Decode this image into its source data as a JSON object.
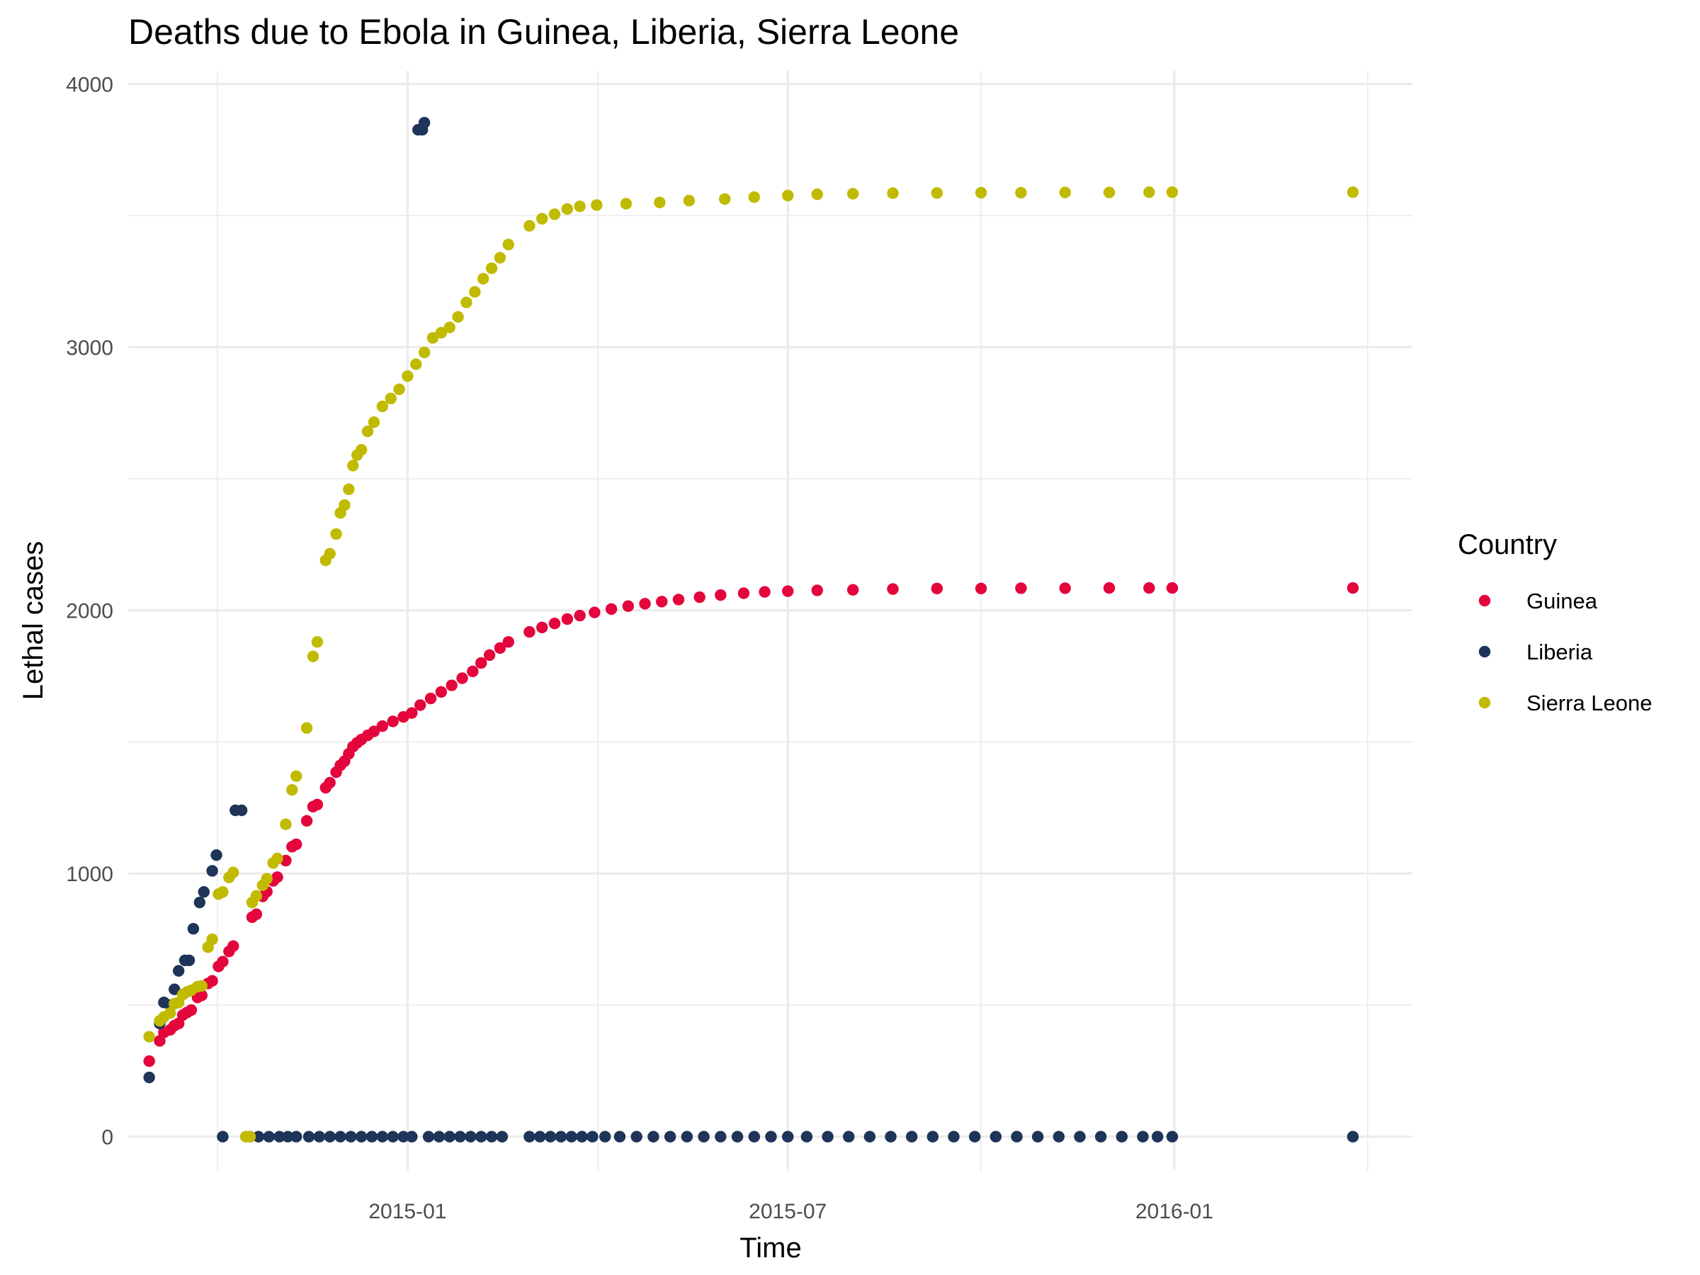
{
  "chart_data": {
    "type": "scatter",
    "title": "Deaths due to Ebola in Guinea, Liberia, Sierra Leone",
    "xlabel": "Time",
    "ylabel": "Lethal cases",
    "x_axis": {
      "type": "date",
      "range": [
        "2014-08-21",
        "2016-04-23"
      ],
      "ticks": [
        "2015-01",
        "2015-07",
        "2016-01"
      ]
    },
    "y_axis": {
      "range": [
        -130,
        4050
      ],
      "ticks": [
        0,
        1000,
        2000,
        3000,
        4000
      ]
    },
    "grid": true,
    "legend": {
      "title": "Country",
      "position": "right"
    },
    "series": [
      {
        "name": "Guinea",
        "color": "#e4053c",
        "points": [
          [
            "2014-08-31",
            287
          ],
          [
            "2014-09-05",
            364
          ],
          [
            "2014-09-07",
            396
          ],
          [
            "2014-09-10",
            406
          ],
          [
            "2014-09-12",
            422
          ],
          [
            "2014-09-14",
            430
          ],
          [
            "2014-09-16",
            462
          ],
          [
            "2014-09-18",
            472
          ],
          [
            "2014-09-20",
            481
          ],
          [
            "2014-09-23",
            529
          ],
          [
            "2014-09-25",
            537
          ],
          [
            "2014-09-28",
            582
          ],
          [
            "2014-09-30",
            592
          ],
          [
            "2014-10-03",
            647
          ],
          [
            "2014-10-05",
            665
          ],
          [
            "2014-10-08",
            704
          ],
          [
            "2014-10-10",
            724
          ],
          [
            "2014-10-19",
            834
          ],
          [
            "2014-10-21",
            845
          ],
          [
            "2014-10-24",
            913
          ],
          [
            "2014-10-26",
            931
          ],
          [
            "2014-10-29",
            972
          ],
          [
            "2014-10-31",
            986
          ],
          [
            "2014-11-04",
            1049
          ],
          [
            "2014-11-07",
            1102
          ],
          [
            "2014-11-09",
            1111
          ],
          [
            "2014-11-14",
            1200
          ],
          [
            "2014-11-17",
            1254
          ],
          [
            "2014-11-19",
            1262
          ],
          [
            "2014-11-23",
            1326
          ],
          [
            "2014-11-25",
            1345
          ],
          [
            "2014-11-28",
            1385
          ],
          [
            "2014-11-30",
            1411
          ],
          [
            "2014-12-02",
            1427
          ],
          [
            "2014-12-04",
            1455
          ],
          [
            "2014-12-06",
            1482
          ],
          [
            "2014-12-08",
            1497
          ],
          [
            "2014-12-10",
            1509
          ],
          [
            "2014-12-13",
            1525
          ],
          [
            "2014-12-16",
            1540
          ],
          [
            "2014-12-20",
            1560
          ],
          [
            "2014-12-25",
            1578
          ],
          [
            "2014-12-30",
            1595
          ],
          [
            "2015-01-03",
            1610
          ],
          [
            "2015-01-07",
            1640
          ],
          [
            "2015-01-12",
            1665
          ],
          [
            "2015-01-17",
            1690
          ],
          [
            "2015-01-22",
            1715
          ],
          [
            "2015-01-27",
            1742
          ],
          [
            "2015-02-01",
            1768
          ],
          [
            "2015-02-05",
            1800
          ],
          [
            "2015-02-09",
            1830
          ],
          [
            "2015-02-14",
            1857
          ],
          [
            "2015-02-18",
            1880
          ],
          [
            "2015-02-28",
            1918
          ],
          [
            "2015-03-06",
            1935
          ],
          [
            "2015-03-12",
            1950
          ],
          [
            "2015-03-18",
            1967
          ],
          [
            "2015-03-24",
            1980
          ],
          [
            "2015-03-31",
            1992
          ],
          [
            "2015-04-08",
            2005
          ],
          [
            "2015-04-16",
            2016
          ],
          [
            "2015-04-24",
            2025
          ],
          [
            "2015-05-02",
            2033
          ],
          [
            "2015-05-10",
            2041
          ],
          [
            "2015-05-20",
            2050
          ],
          [
            "2015-05-30",
            2058
          ],
          [
            "2015-06-10",
            2065
          ],
          [
            "2015-06-20",
            2070
          ],
          [
            "2015-07-01",
            2073
          ],
          [
            "2015-07-15",
            2076
          ],
          [
            "2015-08-01",
            2078
          ],
          [
            "2015-08-20",
            2081
          ],
          [
            "2015-09-10",
            2083
          ],
          [
            "2015-10-01",
            2083
          ],
          [
            "2015-10-20",
            2084
          ],
          [
            "2015-11-10",
            2084
          ],
          [
            "2015-12-01",
            2085
          ],
          [
            "2015-12-20",
            2085
          ],
          [
            "2015-12-31",
            2085
          ],
          [
            "2016-03-26",
            2085
          ]
        ]
      },
      {
        "name": "Liberia",
        "color": "#1e3458",
        "points": [
          [
            "2014-08-31",
            225
          ],
          [
            "2014-09-05",
            430
          ],
          [
            "2014-09-07",
            510
          ],
          [
            "2014-09-10",
            500
          ],
          [
            "2014-09-12",
            560
          ],
          [
            "2014-09-14",
            630
          ],
          [
            "2014-09-17",
            670
          ],
          [
            "2014-09-19",
            670
          ],
          [
            "2014-09-21",
            790
          ],
          [
            "2014-09-24",
            890
          ],
          [
            "2014-09-26",
            930
          ],
          [
            "2014-09-30",
            1010
          ],
          [
            "2014-10-02",
            1070
          ],
          [
            "2014-10-05",
            0
          ],
          [
            "2014-10-11",
            1240
          ],
          [
            "2014-10-14",
            1240
          ],
          [
            "2014-10-18",
            0
          ],
          [
            "2014-10-22",
            0
          ],
          [
            "2014-10-27",
            0
          ],
          [
            "2014-11-01",
            0
          ],
          [
            "2014-11-05",
            0
          ],
          [
            "2014-11-09",
            0
          ],
          [
            "2014-11-15",
            0
          ],
          [
            "2014-11-20",
            0
          ],
          [
            "2014-11-25",
            0
          ],
          [
            "2014-11-30",
            0
          ],
          [
            "2014-12-05",
            0
          ],
          [
            "2014-12-10",
            0
          ],
          [
            "2014-12-15",
            0
          ],
          [
            "2014-12-20",
            0
          ],
          [
            "2014-12-25",
            0
          ],
          [
            "2014-12-30",
            0
          ],
          [
            "2015-01-03",
            0
          ],
          [
            "2015-01-06",
            3826
          ],
          [
            "2015-01-08",
            3826
          ],
          [
            "2015-01-09",
            3853
          ],
          [
            "2015-01-11",
            0
          ],
          [
            "2015-01-16",
            0
          ],
          [
            "2015-01-21",
            0
          ],
          [
            "2015-01-26",
            0
          ],
          [
            "2015-01-31",
            0
          ],
          [
            "2015-02-05",
            0
          ],
          [
            "2015-02-10",
            0
          ],
          [
            "2015-02-15",
            0
          ],
          [
            "2015-02-28",
            0
          ],
          [
            "2015-03-05",
            0
          ],
          [
            "2015-03-10",
            0
          ],
          [
            "2015-03-15",
            0
          ],
          [
            "2015-03-20",
            0
          ],
          [
            "2015-03-25",
            0
          ],
          [
            "2015-03-30",
            0
          ],
          [
            "2015-04-05",
            0
          ],
          [
            "2015-04-12",
            0
          ],
          [
            "2015-04-20",
            0
          ],
          [
            "2015-04-28",
            0
          ],
          [
            "2015-05-06",
            0
          ],
          [
            "2015-05-14",
            0
          ],
          [
            "2015-05-22",
            0
          ],
          [
            "2015-05-30",
            0
          ],
          [
            "2015-06-07",
            0
          ],
          [
            "2015-06-15",
            0
          ],
          [
            "2015-06-23",
            0
          ],
          [
            "2015-07-01",
            0
          ],
          [
            "2015-07-10",
            0
          ],
          [
            "2015-07-20",
            0
          ],
          [
            "2015-07-30",
            0
          ],
          [
            "2015-08-09",
            0
          ],
          [
            "2015-08-19",
            0
          ],
          [
            "2015-08-29",
            0
          ],
          [
            "2015-09-08",
            0
          ],
          [
            "2015-09-18",
            0
          ],
          [
            "2015-09-28",
            0
          ],
          [
            "2015-10-08",
            0
          ],
          [
            "2015-10-18",
            0
          ],
          [
            "2015-10-28",
            0
          ],
          [
            "2015-11-07",
            0
          ],
          [
            "2015-11-17",
            0
          ],
          [
            "2015-11-27",
            0
          ],
          [
            "2015-12-07",
            0
          ],
          [
            "2015-12-17",
            0
          ],
          [
            "2015-12-24",
            0
          ],
          [
            "2015-12-31",
            0
          ],
          [
            "2016-03-26",
            0
          ]
        ]
      },
      {
        "name": "Sierra Leone",
        "color": "#c0bb00",
        "points": [
          [
            "2014-08-31",
            380
          ],
          [
            "2014-09-05",
            440
          ],
          [
            "2014-09-07",
            455
          ],
          [
            "2014-09-10",
            470
          ],
          [
            "2014-09-12",
            505
          ],
          [
            "2014-09-14",
            510
          ],
          [
            "2014-09-16",
            540
          ],
          [
            "2014-09-18",
            550
          ],
          [
            "2014-09-20",
            556
          ],
          [
            "2014-09-23",
            570
          ],
          [
            "2014-09-25",
            573
          ],
          [
            "2014-09-28",
            720
          ],
          [
            "2014-09-30",
            750
          ],
          [
            "2014-10-03",
            922
          ],
          [
            "2014-10-05",
            930
          ],
          [
            "2014-10-08",
            985
          ],
          [
            "2014-10-10",
            1004
          ],
          [
            "2014-10-16",
            0
          ],
          [
            "2014-10-18",
            0
          ],
          [
            "2014-10-19",
            890
          ],
          [
            "2014-10-21",
            915
          ],
          [
            "2014-10-24",
            955
          ],
          [
            "2014-10-26",
            980
          ],
          [
            "2014-10-29",
            1040
          ],
          [
            "2014-10-31",
            1057
          ],
          [
            "2014-11-04",
            1187
          ],
          [
            "2014-11-07",
            1318
          ],
          [
            "2014-11-09",
            1370
          ],
          [
            "2014-11-14",
            1553
          ],
          [
            "2014-11-17",
            1825
          ],
          [
            "2014-11-19",
            1880
          ],
          [
            "2014-11-23",
            2190
          ],
          [
            "2014-11-25",
            2215
          ],
          [
            "2014-11-28",
            2290
          ],
          [
            "2014-11-30",
            2370
          ],
          [
            "2014-12-02",
            2400
          ],
          [
            "2014-12-04",
            2460
          ],
          [
            "2014-12-06",
            2550
          ],
          [
            "2014-12-08",
            2590
          ],
          [
            "2014-12-10",
            2610
          ],
          [
            "2014-12-13",
            2680
          ],
          [
            "2014-12-16",
            2715
          ],
          [
            "2014-12-20",
            2775
          ],
          [
            "2014-12-24",
            2805
          ],
          [
            "2014-12-28",
            2840
          ],
          [
            "2015-01-01",
            2890
          ],
          [
            "2015-01-05",
            2935
          ],
          [
            "2015-01-09",
            2980
          ],
          [
            "2015-01-13",
            3035
          ],
          [
            "2015-01-17",
            3055
          ],
          [
            "2015-01-21",
            3075
          ],
          [
            "2015-01-25",
            3115
          ],
          [
            "2015-01-29",
            3170
          ],
          [
            "2015-02-02",
            3210
          ],
          [
            "2015-02-06",
            3260
          ],
          [
            "2015-02-10",
            3300
          ],
          [
            "2015-02-14",
            3340
          ],
          [
            "2015-02-18",
            3390
          ],
          [
            "2015-02-28",
            3461
          ],
          [
            "2015-03-06",
            3488
          ],
          [
            "2015-03-12",
            3505
          ],
          [
            "2015-03-18",
            3525
          ],
          [
            "2015-03-24",
            3535
          ],
          [
            "2015-04-01",
            3540
          ],
          [
            "2015-04-15",
            3545
          ],
          [
            "2015-05-01",
            3550
          ],
          [
            "2015-05-15",
            3557
          ],
          [
            "2015-06-01",
            3563
          ],
          [
            "2015-06-15",
            3570
          ],
          [
            "2015-07-01",
            3576
          ],
          [
            "2015-07-15",
            3581
          ],
          [
            "2015-08-01",
            3583
          ],
          [
            "2015-08-20",
            3585
          ],
          [
            "2015-09-10",
            3586
          ],
          [
            "2015-10-01",
            3587
          ],
          [
            "2015-10-20",
            3587
          ],
          [
            "2015-11-10",
            3588
          ],
          [
            "2015-12-01",
            3588
          ],
          [
            "2015-12-20",
            3589
          ],
          [
            "2015-12-31",
            3589
          ],
          [
            "2016-03-26",
            3589
          ]
        ]
      }
    ]
  }
}
